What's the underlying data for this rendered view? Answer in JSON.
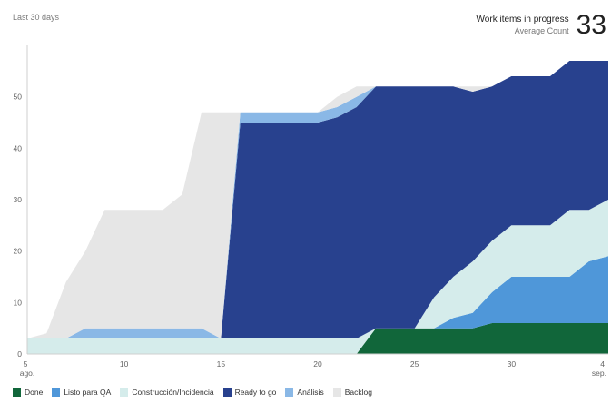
{
  "header": {
    "range_label": "Last 30 days",
    "kpi_title": "Work items in progress",
    "kpi_subtitle": "Average Count",
    "kpi_value": "33"
  },
  "chart_data": {
    "type": "area",
    "stacked": true,
    "title": "",
    "xlabel": "",
    "ylabel": "",
    "x": [
      5,
      6,
      7,
      8,
      9,
      10,
      11,
      12,
      13,
      14,
      15,
      16,
      17,
      18,
      19,
      20,
      21,
      22,
      23,
      24,
      25,
      26,
      27,
      28,
      29,
      30,
      31,
      32,
      33,
      34,
      35
    ],
    "x_tick_labels": [
      {
        "x": 5,
        "label": "5",
        "sub": "ago."
      },
      {
        "x": 10,
        "label": "10",
        "sub": ""
      },
      {
        "x": 15,
        "label": "15",
        "sub": ""
      },
      {
        "x": 20,
        "label": "20",
        "sub": ""
      },
      {
        "x": 25,
        "label": "25",
        "sub": ""
      },
      {
        "x": 30,
        "label": "30",
        "sub": ""
      },
      {
        "x": 35,
        "label": "4",
        "sub": "sep."
      }
    ],
    "y_ticks": [
      0,
      10,
      20,
      30,
      40,
      50
    ],
    "ylim": [
      0,
      60
    ],
    "grid": false,
    "legend_position": "bottom-left",
    "series": [
      {
        "name": "Done",
        "color": "#11663a",
        "values": [
          0,
          0,
          0,
          0,
          0,
          0,
          0,
          0,
          0,
          0,
          0,
          0,
          0,
          0,
          0,
          0,
          0,
          0,
          5,
          5,
          5,
          5,
          5,
          5,
          6,
          6,
          6,
          6,
          6,
          6,
          6
        ]
      },
      {
        "name": "Listo para QA",
        "color": "#4f97d9",
        "values": [
          0,
          0,
          0,
          0,
          0,
          0,
          0,
          0,
          0,
          0,
          0,
          0,
          0,
          0,
          0,
          0,
          0,
          0,
          0,
          0,
          0,
          0,
          2,
          3,
          6,
          9,
          9,
          9,
          9,
          12,
          13
        ]
      },
      {
        "name": "Construcción/Incidencia",
        "color": "#d5eceb",
        "values": [
          3,
          3,
          3,
          3,
          3,
          3,
          3,
          3,
          3,
          3,
          3,
          3,
          3,
          3,
          3,
          3,
          3,
          3,
          0,
          0,
          0,
          6,
          8,
          10,
          10,
          10,
          10,
          10,
          13,
          10,
          11
        ]
      },
      {
        "name": "Ready to go",
        "color": "#28418e",
        "values": [
          0,
          0,
          0,
          0,
          0,
          0,
          0,
          0,
          0,
          0,
          0,
          42,
          42,
          42,
          42,
          42,
          43,
          45,
          47,
          47,
          47,
          41,
          37,
          33,
          30,
          29,
          29,
          29,
          29,
          29,
          27
        ]
      },
      {
        "name": "Análisis",
        "color": "#8ab8e6",
        "values": [
          0,
          0,
          0,
          2,
          2,
          2,
          2,
          2,
          2,
          2,
          0,
          2,
          2,
          2,
          2,
          2,
          2,
          2,
          0,
          0,
          0,
          0,
          0,
          0,
          0,
          0,
          0,
          0,
          0,
          0,
          0
        ]
      },
      {
        "name": "Backlog",
        "color": "#e6e6e6",
        "values": [
          0,
          1,
          11,
          15,
          23,
          23,
          23,
          23,
          26,
          42,
          44,
          0,
          0,
          0,
          0,
          0,
          2,
          2,
          0,
          0,
          0,
          0,
          0,
          1,
          0,
          0,
          0,
          0,
          0,
          0,
          0
        ]
      }
    ]
  }
}
